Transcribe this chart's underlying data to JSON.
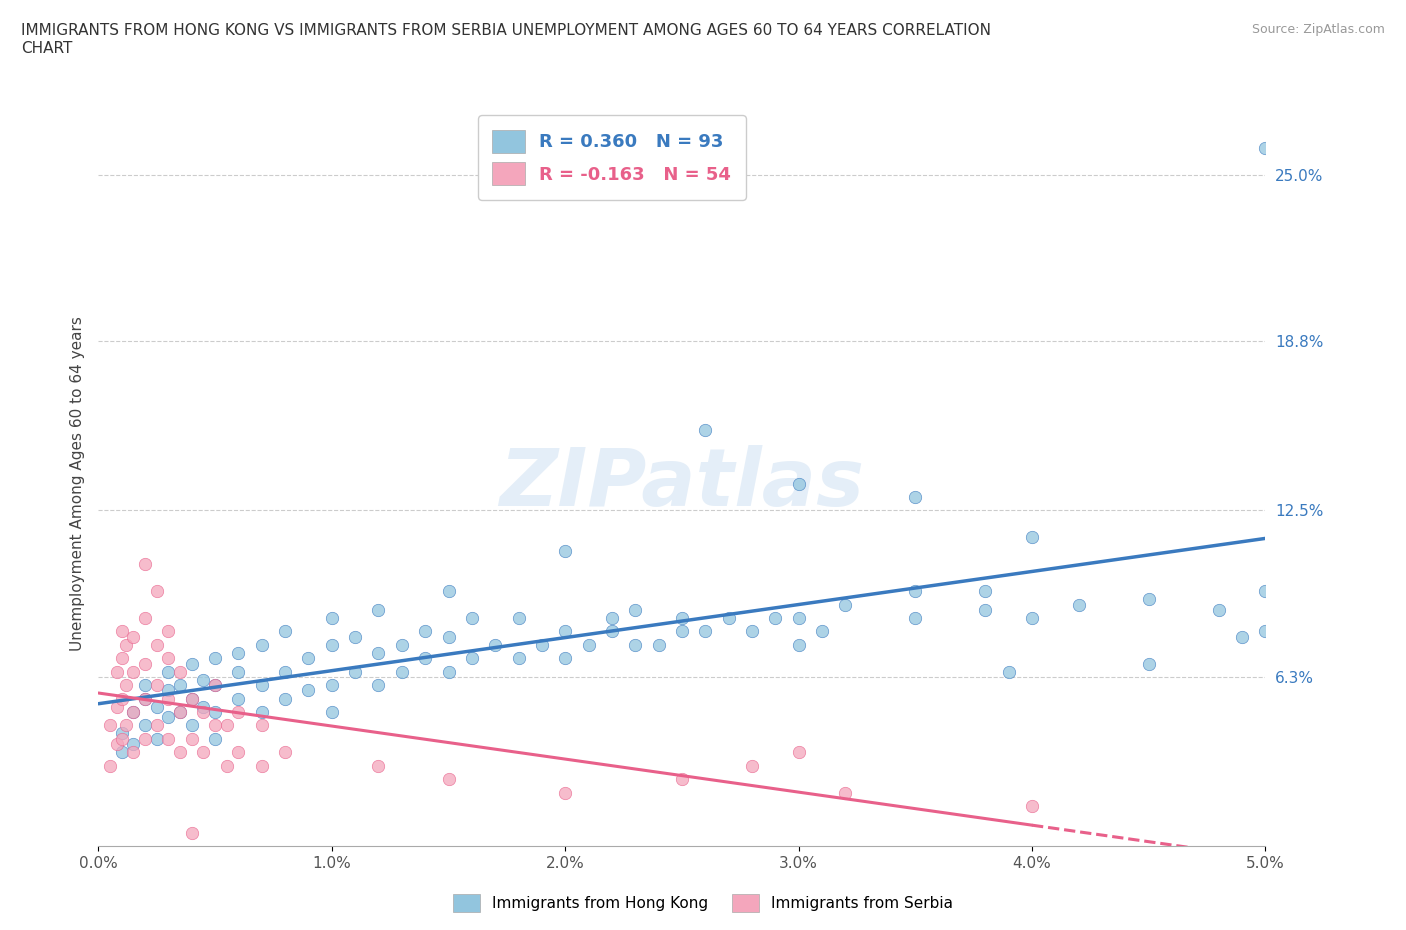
{
  "title": "IMMIGRANTS FROM HONG KONG VS IMMIGRANTS FROM SERBIA UNEMPLOYMENT AMONG AGES 60 TO 64 YEARS CORRELATION\nCHART",
  "source_text": "Source: ZipAtlas.com",
  "ylabel": "Unemployment Among Ages 60 to 64 years",
  "xlim": [
    0.0,
    5.0
  ],
  "ylim": [
    0.0,
    27.0
  ],
  "xtick_labels": [
    "0.0%",
    "1.0%",
    "2.0%",
    "3.0%",
    "4.0%",
    "5.0%"
  ],
  "xtick_vals": [
    0.0,
    1.0,
    2.0,
    3.0,
    4.0,
    5.0
  ],
  "ytick_labels": [
    "6.3%",
    "12.5%",
    "18.8%",
    "25.0%"
  ],
  "ytick_vals": [
    6.3,
    12.5,
    18.8,
    25.0
  ],
  "hk_color": "#92c5de",
  "hk_color_dark": "#3a7abf",
  "serbia_color": "#f4a6bc",
  "serbia_color_dark": "#e8608a",
  "hk_R": 0.36,
  "hk_N": 93,
  "serbia_R": -0.163,
  "serbia_N": 54,
  "watermark": "ZIPatlas",
  "legend_label_hk": "Immigrants from Hong Kong",
  "legend_label_serbia": "Immigrants from Serbia",
  "hk_scatter": [
    [
      0.1,
      3.5
    ],
    [
      0.1,
      4.2
    ],
    [
      0.15,
      5.0
    ],
    [
      0.15,
      3.8
    ],
    [
      0.2,
      4.5
    ],
    [
      0.2,
      5.5
    ],
    [
      0.2,
      6.0
    ],
    [
      0.25,
      4.0
    ],
    [
      0.25,
      5.2
    ],
    [
      0.3,
      4.8
    ],
    [
      0.3,
      5.8
    ],
    [
      0.3,
      6.5
    ],
    [
      0.35,
      5.0
    ],
    [
      0.35,
      6.0
    ],
    [
      0.4,
      4.5
    ],
    [
      0.4,
      5.5
    ],
    [
      0.4,
      6.8
    ],
    [
      0.45,
      5.2
    ],
    [
      0.45,
      6.2
    ],
    [
      0.5,
      4.0
    ],
    [
      0.5,
      5.0
    ],
    [
      0.5,
      6.0
    ],
    [
      0.5,
      7.0
    ],
    [
      0.6,
      5.5
    ],
    [
      0.6,
      6.5
    ],
    [
      0.6,
      7.2
    ],
    [
      0.7,
      5.0
    ],
    [
      0.7,
      6.0
    ],
    [
      0.7,
      7.5
    ],
    [
      0.8,
      5.5
    ],
    [
      0.8,
      6.5
    ],
    [
      0.8,
      8.0
    ],
    [
      0.9,
      5.8
    ],
    [
      0.9,
      7.0
    ],
    [
      1.0,
      5.0
    ],
    [
      1.0,
      6.0
    ],
    [
      1.0,
      7.5
    ],
    [
      1.0,
      8.5
    ],
    [
      1.1,
      6.5
    ],
    [
      1.1,
      7.8
    ],
    [
      1.2,
      6.0
    ],
    [
      1.2,
      7.2
    ],
    [
      1.2,
      8.8
    ],
    [
      1.3,
      6.5
    ],
    [
      1.3,
      7.5
    ],
    [
      1.4,
      7.0
    ],
    [
      1.4,
      8.0
    ],
    [
      1.5,
      6.5
    ],
    [
      1.5,
      7.8
    ],
    [
      1.5,
      9.5
    ],
    [
      1.6,
      7.0
    ],
    [
      1.6,
      8.5
    ],
    [
      1.7,
      7.5
    ],
    [
      1.8,
      7.0
    ],
    [
      1.8,
      8.5
    ],
    [
      1.9,
      7.5
    ],
    [
      2.0,
      7.0
    ],
    [
      2.0,
      8.0
    ],
    [
      2.0,
      11.0
    ],
    [
      2.1,
      7.5
    ],
    [
      2.2,
      8.0
    ],
    [
      2.2,
      8.5
    ],
    [
      2.3,
      7.5
    ],
    [
      2.3,
      8.8
    ],
    [
      2.4,
      7.5
    ],
    [
      2.5,
      8.0
    ],
    [
      2.5,
      8.5
    ],
    [
      2.6,
      8.0
    ],
    [
      2.6,
      15.5
    ],
    [
      2.7,
      8.5
    ],
    [
      2.8,
      8.0
    ],
    [
      2.9,
      8.5
    ],
    [
      3.0,
      7.5
    ],
    [
      3.0,
      8.5
    ],
    [
      3.0,
      13.5
    ],
    [
      3.1,
      8.0
    ],
    [
      3.2,
      9.0
    ],
    [
      3.5,
      8.5
    ],
    [
      3.5,
      9.5
    ],
    [
      3.5,
      13.0
    ],
    [
      3.8,
      8.8
    ],
    [
      3.8,
      9.5
    ],
    [
      3.9,
      6.5
    ],
    [
      4.0,
      8.5
    ],
    [
      4.0,
      11.5
    ],
    [
      4.2,
      9.0
    ],
    [
      4.5,
      6.8
    ],
    [
      4.5,
      9.2
    ],
    [
      4.8,
      8.8
    ],
    [
      4.9,
      7.8
    ],
    [
      5.0,
      9.5
    ],
    [
      5.0,
      8.0
    ],
    [
      5.0,
      26.0
    ]
  ],
  "serbia_scatter": [
    [
      0.05,
      3.0
    ],
    [
      0.05,
      4.5
    ],
    [
      0.08,
      3.8
    ],
    [
      0.08,
      5.2
    ],
    [
      0.08,
      6.5
    ],
    [
      0.1,
      4.0
    ],
    [
      0.1,
      5.5
    ],
    [
      0.1,
      7.0
    ],
    [
      0.1,
      8.0
    ],
    [
      0.12,
      4.5
    ],
    [
      0.12,
      6.0
    ],
    [
      0.12,
      7.5
    ],
    [
      0.15,
      3.5
    ],
    [
      0.15,
      5.0
    ],
    [
      0.15,
      6.5
    ],
    [
      0.15,
      7.8
    ],
    [
      0.2,
      4.0
    ],
    [
      0.2,
      5.5
    ],
    [
      0.2,
      6.8
    ],
    [
      0.2,
      8.5
    ],
    [
      0.2,
      10.5
    ],
    [
      0.25,
      4.5
    ],
    [
      0.25,
      6.0
    ],
    [
      0.25,
      7.5
    ],
    [
      0.25,
      9.5
    ],
    [
      0.3,
      4.0
    ],
    [
      0.3,
      5.5
    ],
    [
      0.3,
      7.0
    ],
    [
      0.3,
      8.0
    ],
    [
      0.35,
      3.5
    ],
    [
      0.35,
      5.0
    ],
    [
      0.35,
      6.5
    ],
    [
      0.4,
      4.0
    ],
    [
      0.4,
      5.5
    ],
    [
      0.4,
      0.5
    ],
    [
      0.45,
      3.5
    ],
    [
      0.45,
      5.0
    ],
    [
      0.5,
      4.5
    ],
    [
      0.5,
      6.0
    ],
    [
      0.55,
      3.0
    ],
    [
      0.55,
      4.5
    ],
    [
      0.6,
      3.5
    ],
    [
      0.6,
      5.0
    ],
    [
      0.7,
      3.0
    ],
    [
      0.7,
      4.5
    ],
    [
      0.8,
      3.5
    ],
    [
      1.2,
      3.0
    ],
    [
      1.5,
      2.5
    ],
    [
      2.0,
      2.0
    ],
    [
      2.5,
      2.5
    ],
    [
      2.8,
      3.0
    ],
    [
      3.0,
      3.5
    ],
    [
      3.2,
      2.0
    ],
    [
      4.0,
      1.5
    ]
  ]
}
